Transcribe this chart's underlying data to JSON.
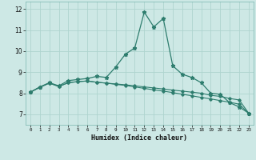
{
  "title": "",
  "xlabel": "Humidex (Indice chaleur)",
  "bg_color": "#cde8e5",
  "line_color": "#2e7d6e",
  "grid_color": "#aed4cf",
  "xlim": [
    -0.5,
    23.5
  ],
  "ylim": [
    6.5,
    12.35
  ],
  "x_ticks": [
    0,
    1,
    2,
    3,
    4,
    5,
    6,
    7,
    8,
    9,
    10,
    11,
    12,
    13,
    14,
    15,
    16,
    17,
    18,
    19,
    20,
    21,
    22,
    23
  ],
  "y_ticks": [
    7,
    8,
    9,
    10,
    11,
    12
  ],
  "line1_x": [
    0,
    1,
    2,
    3,
    4,
    5,
    6,
    7,
    8,
    9,
    10,
    11,
    12,
    13,
    14,
    15,
    16,
    17,
    18,
    19,
    20,
    21,
    22,
    23
  ],
  "line1_y": [
    8.05,
    8.3,
    8.5,
    8.35,
    8.6,
    8.65,
    8.7,
    8.8,
    8.75,
    9.25,
    9.85,
    10.15,
    11.85,
    11.15,
    11.55,
    9.3,
    8.9,
    8.75,
    8.5,
    8.0,
    7.95,
    7.55,
    7.35,
    7.05
  ],
  "line2_x": [
    0,
    1,
    2,
    3,
    4,
    5,
    6,
    7,
    8,
    9,
    10,
    11,
    12,
    13,
    14,
    15,
    16,
    17,
    18,
    19,
    20,
    21,
    22,
    23
  ],
  "line2_y": [
    8.05,
    8.28,
    8.48,
    8.32,
    8.5,
    8.55,
    8.58,
    8.52,
    8.48,
    8.44,
    8.4,
    8.35,
    8.3,
    8.25,
    8.2,
    8.15,
    8.1,
    8.05,
    8.0,
    7.9,
    7.85,
    7.75,
    7.68,
    7.05
  ],
  "line3_x": [
    0,
    1,
    2,
    3,
    4,
    5,
    6,
    7,
    8,
    9,
    10,
    11,
    12,
    13,
    14,
    15,
    16,
    17,
    18,
    19,
    20,
    21,
    22,
    23
  ],
  "line3_y": [
    8.05,
    8.28,
    8.48,
    8.32,
    8.5,
    8.55,
    8.58,
    8.52,
    8.48,
    8.42,
    8.37,
    8.3,
    8.23,
    8.16,
    8.1,
    8.03,
    7.95,
    7.88,
    7.8,
    7.73,
    7.65,
    7.57,
    7.48,
    7.05
  ]
}
